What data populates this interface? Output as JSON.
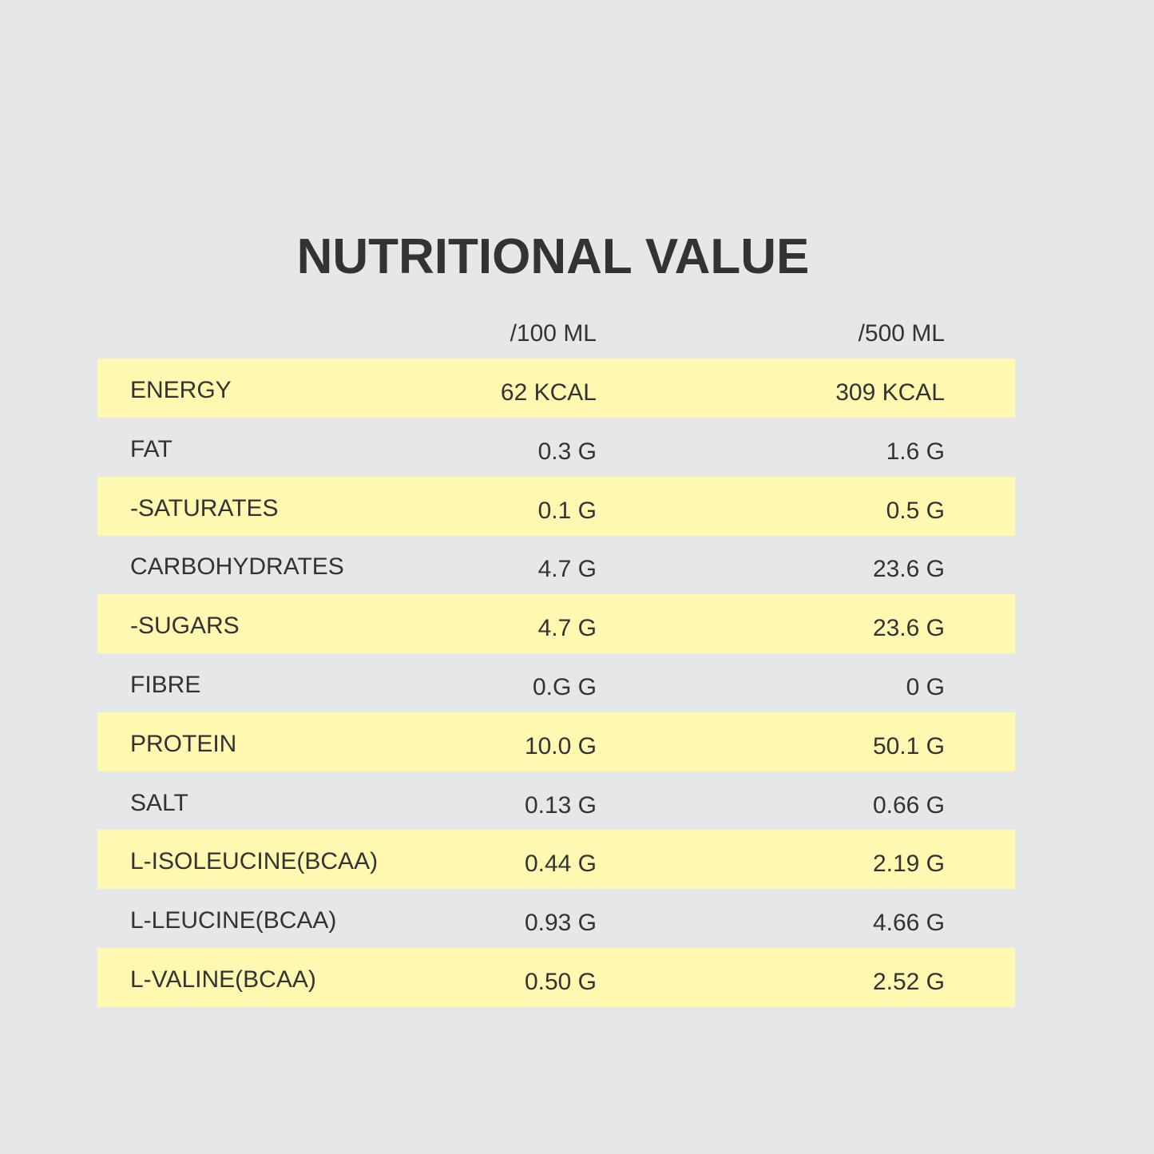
{
  "title": "NUTRITIONAL VALUE",
  "table": {
    "header": [
      "/100 ML",
      "/500 ML"
    ],
    "rows": [
      [
        "ENERGY",
        "62 KCAL",
        "309 KCAL"
      ],
      [
        "FAT",
        "0.3 G",
        "1.6 G"
      ],
      [
        "-SATURATES",
        "0.1 G",
        "0.5 G"
      ],
      [
        "CARBOHYDRATES",
        "4.7 G",
        "23.6 G"
      ],
      [
        "-SUGARS",
        "4.7 G",
        "23.6 G"
      ],
      [
        "FIBRE",
        "0.G G",
        "0 G"
      ],
      [
        "PROTEIN",
        "10.0 G",
        "50.1 G"
      ],
      [
        "SALT",
        "0.13 G",
        "0.66 G"
      ],
      [
        "L-ISOLEUCINE(BCAA)",
        "0.44 G",
        "2.19 G"
      ],
      [
        "L-LEUCINE(BCAA)",
        "0.93 G",
        "4.66 G"
      ],
      [
        "L-VALINE(BCAA)",
        "0.50 G",
        "2.52 G"
      ]
    ]
  }
}
